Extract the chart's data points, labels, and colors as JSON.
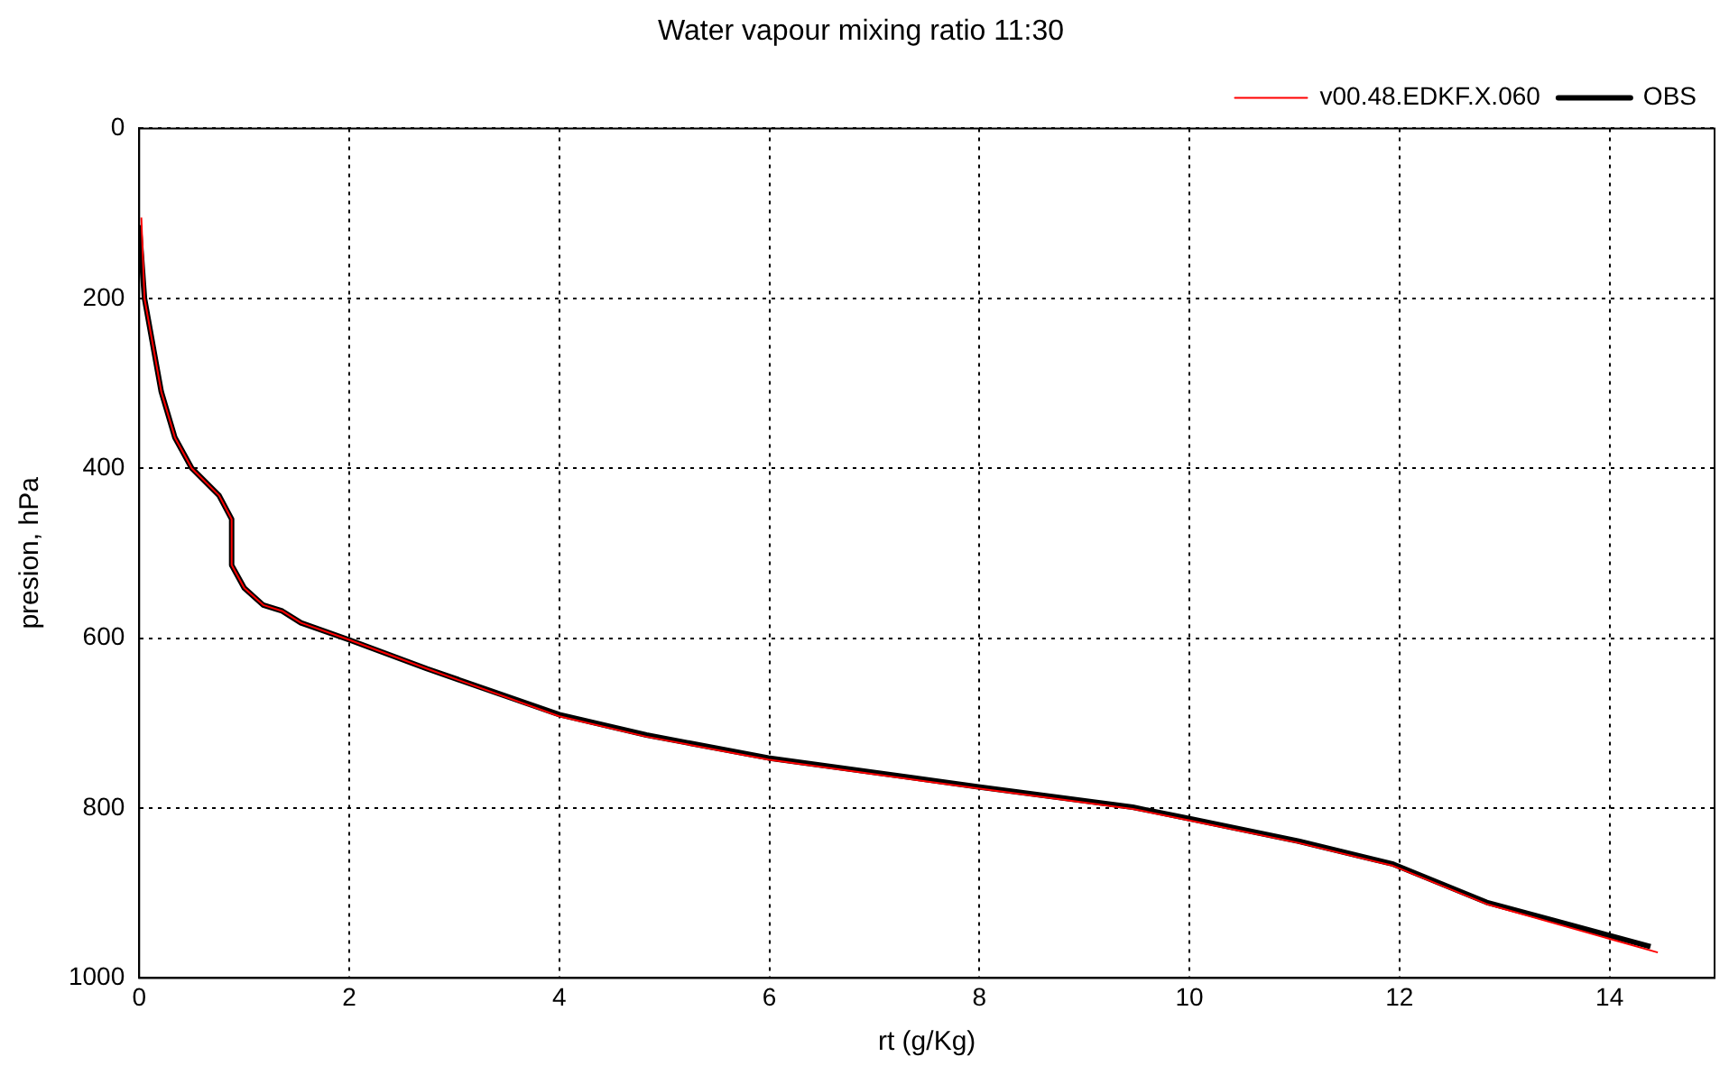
{
  "chart_data": {
    "type": "line",
    "title": "Water vapour mixing ratio 11:30",
    "xlabel": "rt (g/Kg)",
    "ylabel": "presion, hPa",
    "series": [
      {
        "name": "OBS",
        "color": "#000000",
        "x": [
          0,
          0.05,
          0.21,
          0.34,
          0.5,
          0.76,
          0.88,
          0.88,
          1.0,
          1.18,
          1.36,
          1.54,
          2.0,
          2.74,
          4.0,
          4.83,
          5.99,
          7.99,
          9.46,
          9.98,
          11.04,
          11.94,
          12.83,
          14.39
        ],
        "values": [
          114,
          200,
          310,
          364,
          400,
          432,
          460,
          514,
          541,
          561,
          568,
          582,
          602,
          636,
          690,
          714,
          741,
          775,
          799,
          812,
          839,
          866,
          911,
          963
        ]
      },
      {
        "name": "v00.48.EDKF.X.060",
        "color": "#ff0000",
        "x": [
          0.02,
          0.05,
          0.21,
          0.34,
          0.5,
          0.76,
          0.88,
          0.88,
          1.0,
          1.18,
          1.36,
          1.54,
          2.0,
          2.74,
          4.0,
          4.83,
          5.99,
          7.99,
          9.46,
          9.98,
          11.04,
          11.94,
          12.83,
          14.46
        ],
        "values": [
          105,
          200,
          310,
          364,
          400,
          432,
          460,
          514,
          541,
          561,
          568,
          582,
          602,
          636,
          692,
          716,
          743,
          777,
          801,
          814,
          841,
          868,
          913,
          970
        ]
      }
    ],
    "xlim": [
      0,
      15
    ],
    "xticks": [
      0,
      2,
      4,
      6,
      8,
      10,
      12,
      14
    ],
    "ylim": [
      1000,
      0
    ],
    "yticks": [
      0,
      200,
      400,
      600,
      800,
      1000
    ],
    "grid": true,
    "legend": "top right",
    "marker": "none",
    "line_style": "solid"
  }
}
